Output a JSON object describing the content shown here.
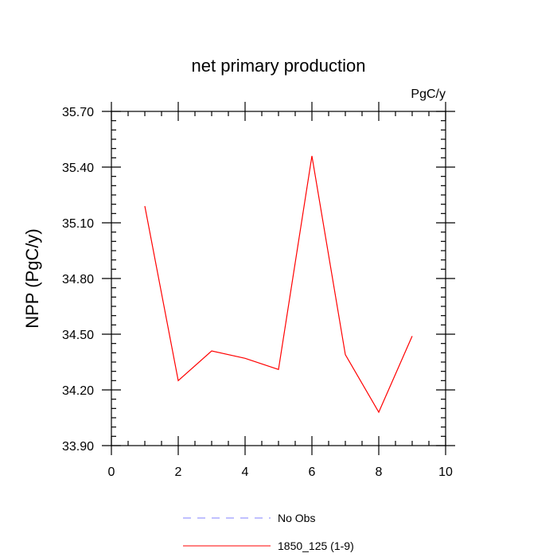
{
  "chart_data": {
    "type": "line",
    "title": "net primary production",
    "units_label": "PgC/y",
    "xlabel": "",
    "ylabel": "NPP  (PgC/y)",
    "xlim": [
      0,
      10
    ],
    "ylim": [
      33.9,
      35.7
    ],
    "x_ticks": [
      0,
      2,
      4,
      6,
      8,
      10
    ],
    "x_tick_labels": [
      "0",
      "2",
      "4",
      "6",
      "8",
      "10"
    ],
    "y_ticks": [
      33.9,
      34.2,
      34.5,
      34.8,
      35.1,
      35.4,
      35.7
    ],
    "y_tick_labels": [
      "33.90",
      "34.20",
      "34.50",
      "34.80",
      "35.10",
      "35.40",
      "35.70"
    ],
    "x_minor_step": 0.5,
    "y_minor_step": 0.05,
    "grid": false,
    "legend_position": "bottom",
    "series": [
      {
        "name": "1850_125 (1-9)",
        "color": "#ff0000",
        "style": "solid",
        "x": [
          1,
          2,
          3,
          4,
          5,
          6,
          7,
          8,
          9
        ],
        "y": [
          35.19,
          34.25,
          34.41,
          34.37,
          34.31,
          35.46,
          34.39,
          34.08,
          34.49
        ]
      },
      {
        "name": "No Obs",
        "color": "#8080ff",
        "style": "dashed",
        "x": [],
        "y": []
      }
    ]
  }
}
